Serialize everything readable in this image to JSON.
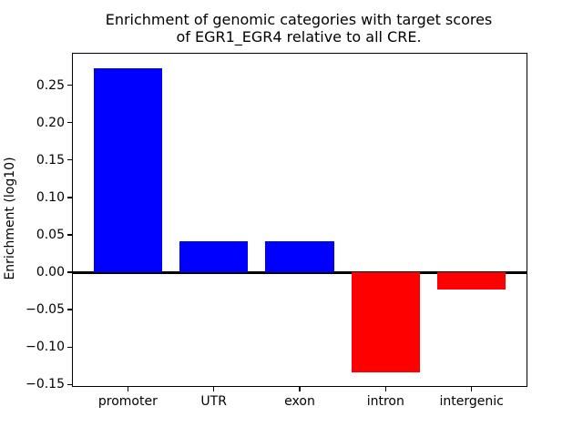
{
  "chart_data": {
    "type": "bar",
    "title": "Enrichment of genomic categories with target scores\nof EGR1_EGR4 relative to all CRE.",
    "xlabel": "",
    "ylabel": "Enrichment (log10)",
    "categories": [
      "promoter",
      "UTR",
      "exon",
      "intron",
      "intergenic"
    ],
    "values": [
      0.273,
      0.042,
      0.042,
      -0.134,
      -0.023
    ],
    "positive_color": "#0000ff",
    "negative_color": "#ff0000",
    "zero_line_color": "#000000",
    "ylim": [
      -0.152,
      0.292
    ],
    "yticks": [
      {
        "value": 0.25,
        "label": "0.25"
      },
      {
        "value": 0.2,
        "label": "0.20"
      },
      {
        "value": 0.15,
        "label": "0.15"
      },
      {
        "value": 0.1,
        "label": "0.10"
      },
      {
        "value": 0.05,
        "label": "0.05"
      },
      {
        "value": 0.0,
        "label": "0.00"
      },
      {
        "value": -0.05,
        "label": "−0.05"
      },
      {
        "value": -0.1,
        "label": "−0.10"
      },
      {
        "value": -0.15,
        "label": "−0.15"
      }
    ],
    "grid": false,
    "legend": "none"
  }
}
